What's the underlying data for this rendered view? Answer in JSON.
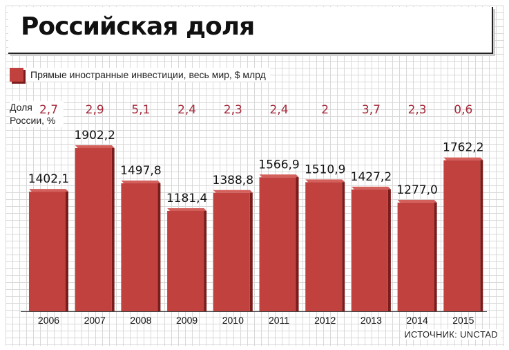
{
  "title": "Российская доля",
  "legend_label": "Прямые иностранные инвестиции, весь мир, $ млрд",
  "share_caption": "Доля России, %",
  "source": "ИСТОЧНИК: UNCTAD",
  "colors": {
    "bar": "#c1413f",
    "bar_shadow": "#7a1c1b",
    "share_text": "#a62a3a"
  },
  "chart_data": {
    "type": "bar",
    "categories": [
      "2006",
      "2007",
      "2008",
      "2009",
      "2010",
      "2011",
      "2012",
      "2013",
      "2014",
      "2015"
    ],
    "values": [
      1402.1,
      1902.2,
      1497.8,
      1181.4,
      1388.8,
      1566.9,
      1510.9,
      1427.2,
      1277.0,
      1762.2
    ],
    "value_labels": [
      "1402,1",
      "1902,2",
      "1497,8",
      "1181,4",
      "1388,8",
      "1566,9",
      "1510,9",
      "1427,2",
      "1277,0",
      "1762,2"
    ],
    "russia_share": [
      "2,7",
      "2,9",
      "5,1",
      "2,4",
      "2,3",
      "2,4",
      "2",
      "3,7",
      "2,3",
      "0,6"
    ],
    "title": "Российская доля",
    "grid": true
  }
}
